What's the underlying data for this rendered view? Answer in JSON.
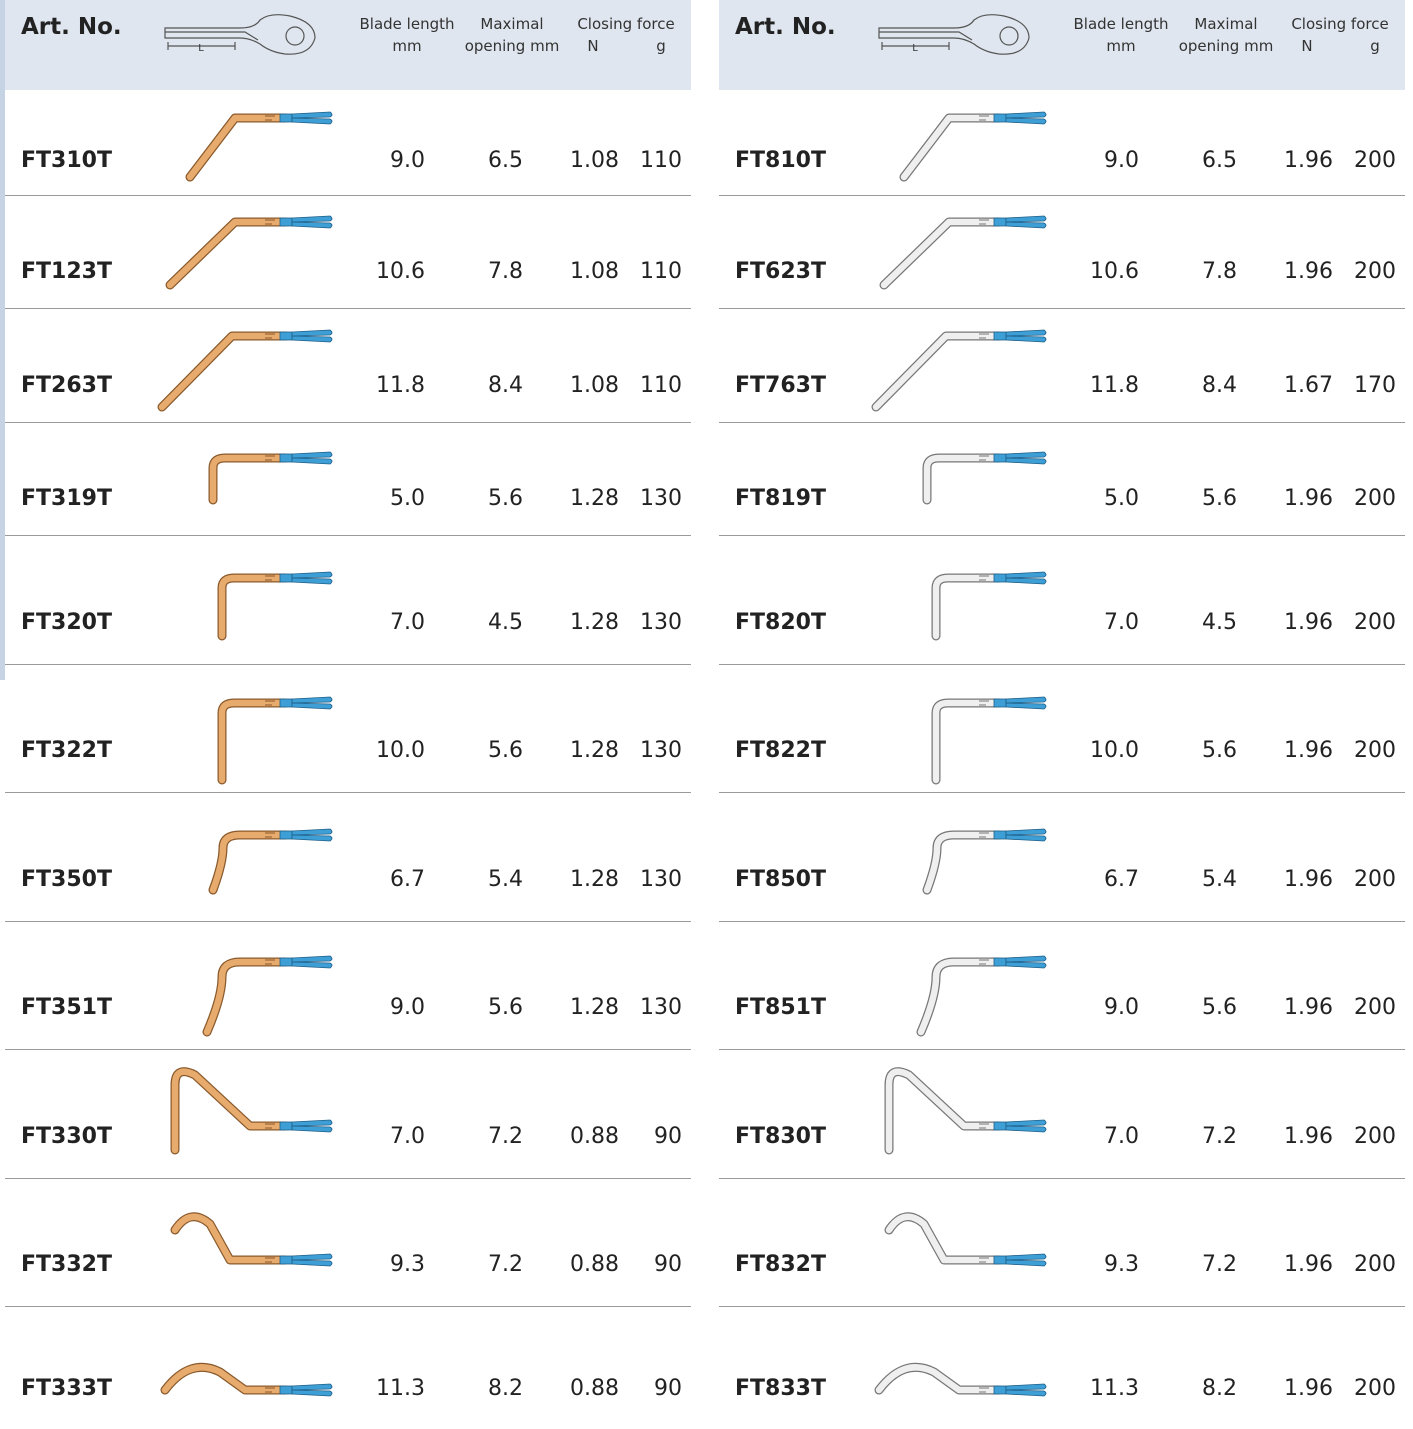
{
  "tables": [
    {
      "header": {
        "art_no": "Art. No.",
        "dimension": "L",
        "blade_length": [
          "Blade length",
          "mm"
        ],
        "opening": [
          "Maximal",
          "opening mm"
        ],
        "closing_force": "Closing force",
        "unit_n": "N",
        "unit_g": "g"
      },
      "rows": [
        [
          "FT310T",
          "9.0",
          "6.5",
          "1.08",
          "110"
        ],
        [
          "FT123T",
          "10.6",
          "7.8",
          "1.08",
          "110"
        ],
        [
          "FT263T",
          "11.8",
          "8.4",
          "1.08",
          "110"
        ],
        [
          "FT319T",
          "5.0",
          "5.6",
          "1.28",
          "130"
        ],
        [
          "FT320T",
          "7.0",
          "4.5",
          "1.28",
          "130"
        ],
        [
          "FT322T",
          "10.0",
          "5.6",
          "1.28",
          "130"
        ],
        [
          "FT350T",
          "6.7",
          "5.4",
          "1.28",
          "130"
        ],
        [
          "FT351T",
          "9.0",
          "5.6",
          "1.28",
          "130"
        ],
        [
          "FT330T",
          "7.0",
          "7.2",
          "0.88",
          "90"
        ],
        [
          "FT332T",
          "9.3",
          "7.2",
          "0.88",
          "90"
        ],
        [
          "FT333T",
          "11.3",
          "8.2",
          "0.88",
          "90"
        ]
      ]
    },
    {
      "header": {
        "art_no": "Art. No.",
        "dimension": "L",
        "blade_length": [
          "Blade length",
          "mm"
        ],
        "opening": [
          "Maximal",
          "opening mm"
        ],
        "closing_force": "Closing force",
        "unit_n": "N",
        "unit_g": "g"
      },
      "rows": [
        [
          "FT810T",
          "9.0",
          "6.5",
          "1.96",
          "200"
        ],
        [
          "FT623T",
          "10.6",
          "7.8",
          "1.96",
          "200"
        ],
        [
          "FT763T",
          "11.8",
          "8.4",
          "1.67",
          "170"
        ],
        [
          "FT819T",
          "5.0",
          "5.6",
          "1.96",
          "200"
        ],
        [
          "FT820T",
          "7.0",
          "4.5",
          "1.96",
          "200"
        ],
        [
          "FT822T",
          "10.0",
          "5.6",
          "1.96",
          "200"
        ],
        [
          "FT850T",
          "6.7",
          "5.4",
          "1.96",
          "200"
        ],
        [
          "FT851T",
          "9.0",
          "5.6",
          "1.96",
          "200"
        ],
        [
          "FT830T",
          "7.0",
          "7.2",
          "1.96",
          "200"
        ],
        [
          "FT832T",
          "9.3",
          "7.2",
          "1.96",
          "200"
        ],
        [
          "FT833T",
          "11.3",
          "8.2",
          "1.96",
          "200"
        ]
      ]
    }
  ]
}
